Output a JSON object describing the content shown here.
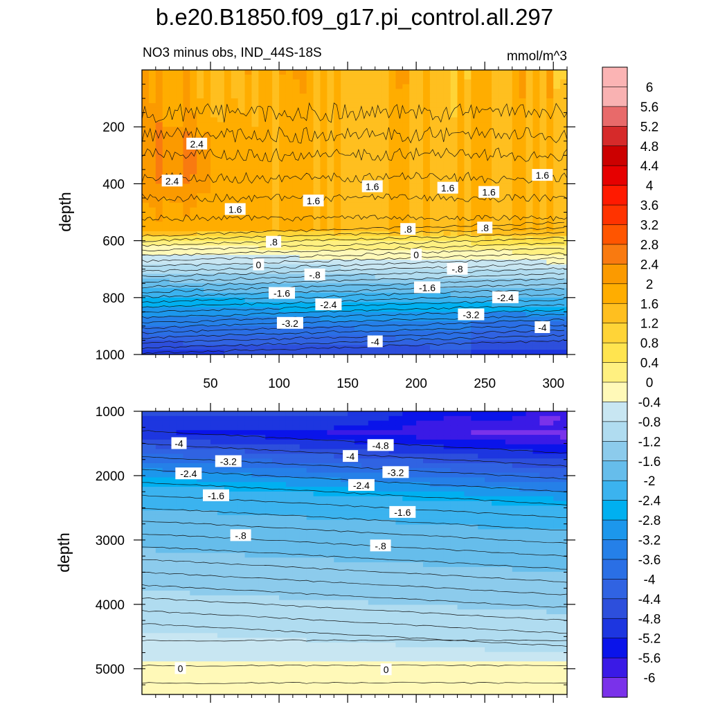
{
  "chart_data": {
    "type": "heatmap",
    "title": "b.e20.B1850.f09_g17.pi_control.all.297",
    "subtitle_left": "NO3 minus obs, IND_44S-18S",
    "subtitle_right": "mmol/m^3",
    "ylabel": "depth",
    "xlim": [
      0,
      310
    ],
    "x_ticks": [
      "50",
      "100",
      "150",
      "200",
      "250",
      "300"
    ],
    "top_panel": {
      "ylim": [
        0,
        1000
      ],
      "y_ticks": [
        "200",
        "400",
        "600",
        "800",
        "1000"
      ],
      "y_tick_values": [
        200,
        400,
        600,
        800,
        1000
      ],
      "contour_labels": [
        {
          "text": "2.4",
          "x": 40,
          "depth": 260
        },
        {
          "text": "2.4",
          "x": 22,
          "depth": 390
        },
        {
          "text": "1.6",
          "x": 68,
          "depth": 490
        },
        {
          "text": "1.6",
          "x": 125,
          "depth": 460
        },
        {
          "text": "1.6",
          "x": 168,
          "depth": 410
        },
        {
          "text": "1.6",
          "x": 223,
          "depth": 415
        },
        {
          "text": "1.6",
          "x": 253,
          "depth": 430
        },
        {
          "text": "1.6",
          "x": 292,
          "depth": 370
        },
        {
          "text": ".8",
          "x": 96,
          "depth": 605
        },
        {
          "text": ".8",
          "x": 194,
          "depth": 560
        },
        {
          "text": ".8",
          "x": 250,
          "depth": 555
        },
        {
          "text": "0",
          "x": 85,
          "depth": 685
        },
        {
          "text": "0",
          "x": 200,
          "depth": 650
        },
        {
          "text": "-.8",
          "x": 126,
          "depth": 720
        },
        {
          "text": "-.8",
          "x": 230,
          "depth": 700
        },
        {
          "text": "-1.6",
          "x": 102,
          "depth": 785
        },
        {
          "text": "-1.6",
          "x": 208,
          "depth": 765
        },
        {
          "text": "-2.4",
          "x": 136,
          "depth": 825
        },
        {
          "text": "-2.4",
          "x": 265,
          "depth": 800
        },
        {
          "text": "-3.2",
          "x": 108,
          "depth": 890
        },
        {
          "text": "-3.2",
          "x": 240,
          "depth": 860
        },
        {
          "text": "-4",
          "x": 170,
          "depth": 955
        },
        {
          "text": "-4",
          "x": 292,
          "depth": 905
        }
      ]
    },
    "bottom_panel": {
      "ylim": [
        1000,
        5400
      ],
      "y_ticks": [
        "1000",
        "2000",
        "3000",
        "4000",
        "5000"
      ],
      "y_tick_values": [
        1000,
        2000,
        3000,
        4000,
        5000
      ],
      "contour_labels": [
        {
          "text": "-4",
          "x": 27,
          "depth": 1500
        },
        {
          "text": "-4.8",
          "x": 174,
          "depth": 1530
        },
        {
          "text": "-4",
          "x": 152,
          "depth": 1700
        },
        {
          "text": "-3.2",
          "x": 63,
          "depth": 1780
        },
        {
          "text": "-3.2",
          "x": 185,
          "depth": 1950
        },
        {
          "text": "-2.4",
          "x": 34,
          "depth": 1970
        },
        {
          "text": "-2.4",
          "x": 160,
          "depth": 2150
        },
        {
          "text": "-1.6",
          "x": 54,
          "depth": 2310
        },
        {
          "text": "-1.6",
          "x": 190,
          "depth": 2570
        },
        {
          "text": "-.8",
          "x": 72,
          "depth": 2930
        },
        {
          "text": "-.8",
          "x": 174,
          "depth": 3090
        },
        {
          "text": "0",
          "x": 28,
          "depth": 4995
        },
        {
          "text": "0",
          "x": 178,
          "depth": 5015
        }
      ]
    },
    "colorbar": {
      "levels": [
        "6",
        "5.6",
        "5.2",
        "4.8",
        "4.4",
        "4",
        "3.6",
        "3.2",
        "2.8",
        "2.4",
        "2",
        "1.6",
        "1.2",
        "0.8",
        "0.4",
        "0",
        "-0.4",
        "-0.8",
        "-1.2",
        "-1.6",
        "-2",
        "-2.4",
        "-2.8",
        "-3.2",
        "-3.6",
        "-4",
        "-4.4",
        "-4.8",
        "-5.2",
        "-5.6",
        "-6"
      ],
      "level_values": [
        6,
        5.6,
        5.2,
        4.8,
        4.4,
        4,
        3.6,
        3.2,
        2.8,
        2.4,
        2,
        1.6,
        1.2,
        0.8,
        0.4,
        0,
        -0.4,
        -0.8,
        -1.2,
        -1.6,
        -2,
        -2.4,
        -2.8,
        -3.2,
        -3.6,
        -4,
        -4.4,
        -4.8,
        -5.2,
        -5.6,
        -6
      ],
      "colors": [
        "#f9b2b2",
        "#e86a6a",
        "#d62a2a",
        "#cc0000",
        "#e60000",
        "#ff1a00",
        "#ff3300",
        "#ff5500",
        "#f97a10",
        "#fb9a00",
        "#ffad00",
        "#ffbf1f",
        "#ffd437",
        "#ffe44f",
        "#fff080",
        "#fff9b8",
        "#c8e6f2",
        "#b0dcf0",
        "#8ccbec",
        "#66bdeb",
        "#3bb3ef",
        "#00b0f0",
        "#1c97ec",
        "#2580e8",
        "#2a6fe5",
        "#3063e2",
        "#2d4fdc",
        "#1d36e0",
        "#0a14ea",
        "#3a1ae6",
        "#7a32ea"
      ]
    }
  }
}
